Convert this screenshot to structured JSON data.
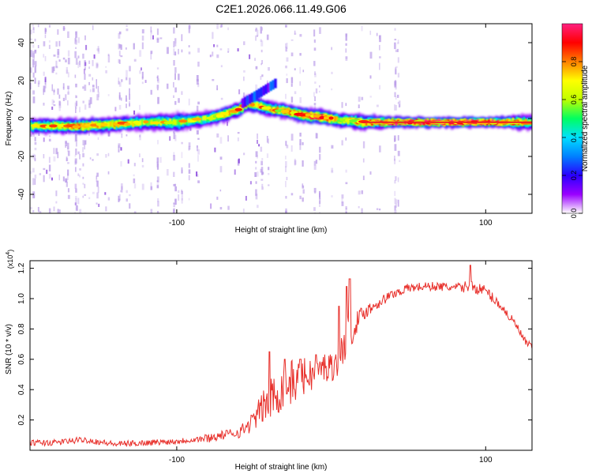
{
  "title": "C2E1.2026.066.11.49.G06",
  "colors": {
    "snr_line": "#e8312c",
    "axis": "#000000",
    "ridge_core": "#ee1c24",
    "background_noise": "#b89ae8"
  },
  "chart_data": [
    {
      "type": "heatmap",
      "name": "spectrogram",
      "xlabel": "Height of straight line (km)",
      "ylabel": "Frequency (Hz)",
      "xlim": [
        -195,
        130
      ],
      "ylim": [
        -50,
        50
      ],
      "x_ticks": [
        -100,
        100
      ],
      "x_tick_labels": [
        "-100",
        "100"
      ],
      "y_ticks": [
        -40,
        -20,
        0,
        20,
        40
      ],
      "y_tick_labels": [
        "-40",
        "-20",
        "0",
        "20",
        "40"
      ],
      "ridge": {
        "x": [
          -195,
          -180,
          -160,
          -140,
          -120,
          -100,
          -90,
          -80,
          -70,
          -60,
          -55,
          -50,
          -45,
          -40,
          -30,
          -20,
          -10,
          0,
          5,
          10,
          20,
          40,
          60,
          80,
          100,
          110,
          120,
          130
        ],
        "freq": [
          -4,
          -4,
          -4,
          -3,
          -2,
          -2,
          -1,
          0,
          2,
          5,
          8,
          7,
          6,
          5,
          4,
          2,
          1,
          0,
          -1,
          -1,
          -2,
          -2,
          -2,
          -2,
          -2,
          -2,
          -2,
          -2
        ],
        "core_amplitude": [
          0.6,
          0.7,
          0.8,
          0.7,
          0.6,
          0.6,
          0.55,
          0.6,
          0.7,
          0.75,
          0.7,
          0.7,
          0.7,
          0.7,
          0.75,
          0.85,
          0.9,
          0.85,
          0.6,
          0.75,
          0.8,
          0.9,
          0.95,
          0.95,
          0.9,
          0.85,
          0.75,
          0.6
        ],
        "width_hz": [
          3,
          3,
          3,
          3,
          3,
          4,
          3,
          3,
          3,
          3,
          3,
          3,
          3,
          3,
          3,
          3,
          3,
          3,
          3,
          3,
          3,
          2,
          2,
          2,
          2,
          2,
          3,
          3
        ]
      },
      "upper_branch": {
        "x": [
          -58,
          -52,
          -46,
          -40,
          -36
        ],
        "freq": [
          8,
          11,
          14,
          17,
          19
        ]
      },
      "colorbar": {
        "label": "Normalized spectral amplitude",
        "range": [
          0,
          1
        ],
        "ticks": [
          0.0,
          0.2,
          0.4,
          0.6,
          0.8
        ],
        "tick_labels": [
          "0.0",
          "0.2",
          "0.4",
          "0.6",
          "0.8"
        ],
        "colormap": [
          "#ffffff",
          "#9a00ff",
          "#2a00ff",
          "#0080ff",
          "#00e0ff",
          "#00ff60",
          "#c0ff00",
          "#ffff00",
          "#ff8000",
          "#ff0000",
          "#ff2080"
        ]
      }
    },
    {
      "type": "line",
      "name": "snr",
      "xlabel": "Height of straight line (km)",
      "ylabel": "SNR (10 * v/v)",
      "scale_label": "(x10",
      "scale_exponent": "4",
      "scale_close": ")",
      "xlim": [
        -195,
        130
      ],
      "ylim": [
        0,
        1.25
      ],
      "x_ticks": [
        -100,
        100
      ],
      "x_tick_labels": [
        "-100",
        "100"
      ],
      "y_ticks": [
        0.2,
        0.4,
        0.6,
        0.8,
        1.0,
        1.2
      ],
      "y_tick_labels": [
        "0.2",
        "0.4",
        "0.6",
        "0.8",
        "1.0",
        "1.2"
      ],
      "series": [
        {
          "name": "SNR",
          "x": [
            -195,
            -180,
            -160,
            -140,
            -120,
            -100,
            -90,
            -80,
            -70,
            -60,
            -55,
            -50,
            -45,
            -40,
            -35,
            -30,
            -25,
            -20,
            -15,
            -10,
            -5,
            0,
            5,
            10,
            15,
            20,
            30,
            40,
            50,
            60,
            70,
            80,
            90,
            100,
            110,
            120,
            125,
            130
          ],
          "values": [
            0.05,
            0.05,
            0.07,
            0.04,
            0.05,
            0.06,
            0.07,
            0.08,
            0.1,
            0.12,
            0.15,
            0.2,
            0.28,
            0.32,
            0.38,
            0.42,
            0.45,
            0.47,
            0.5,
            0.5,
            0.55,
            0.55,
            0.6,
            0.75,
            0.82,
            0.9,
            0.97,
            1.03,
            1.07,
            1.08,
            1.08,
            1.07,
            1.08,
            1.05,
            0.95,
            0.82,
            0.72,
            0.68
          ],
          "noise_amp": [
            0.02,
            0.02,
            0.02,
            0.02,
            0.02,
            0.02,
            0.02,
            0.03,
            0.03,
            0.04,
            0.05,
            0.07,
            0.1,
            0.15,
            0.15,
            0.15,
            0.15,
            0.13,
            0.12,
            0.1,
            0.1,
            0.1,
            0.1,
            0.15,
            0.08,
            0.05,
            0.04,
            0.03,
            0.03,
            0.03,
            0.03,
            0.03,
            0.04,
            0.04,
            0.03,
            0.03,
            0.03,
            0.02
          ],
          "peaks": [
            [
              -40,
              0.65
            ],
            [
              -30,
              0.6
            ],
            [
              -20,
              0.6
            ],
            [
              -10,
              0.63
            ],
            [
              5,
              0.95
            ],
            [
              10,
              1.08
            ],
            [
              12,
              1.13
            ],
            [
              90,
              1.22
            ]
          ]
        }
      ]
    }
  ]
}
